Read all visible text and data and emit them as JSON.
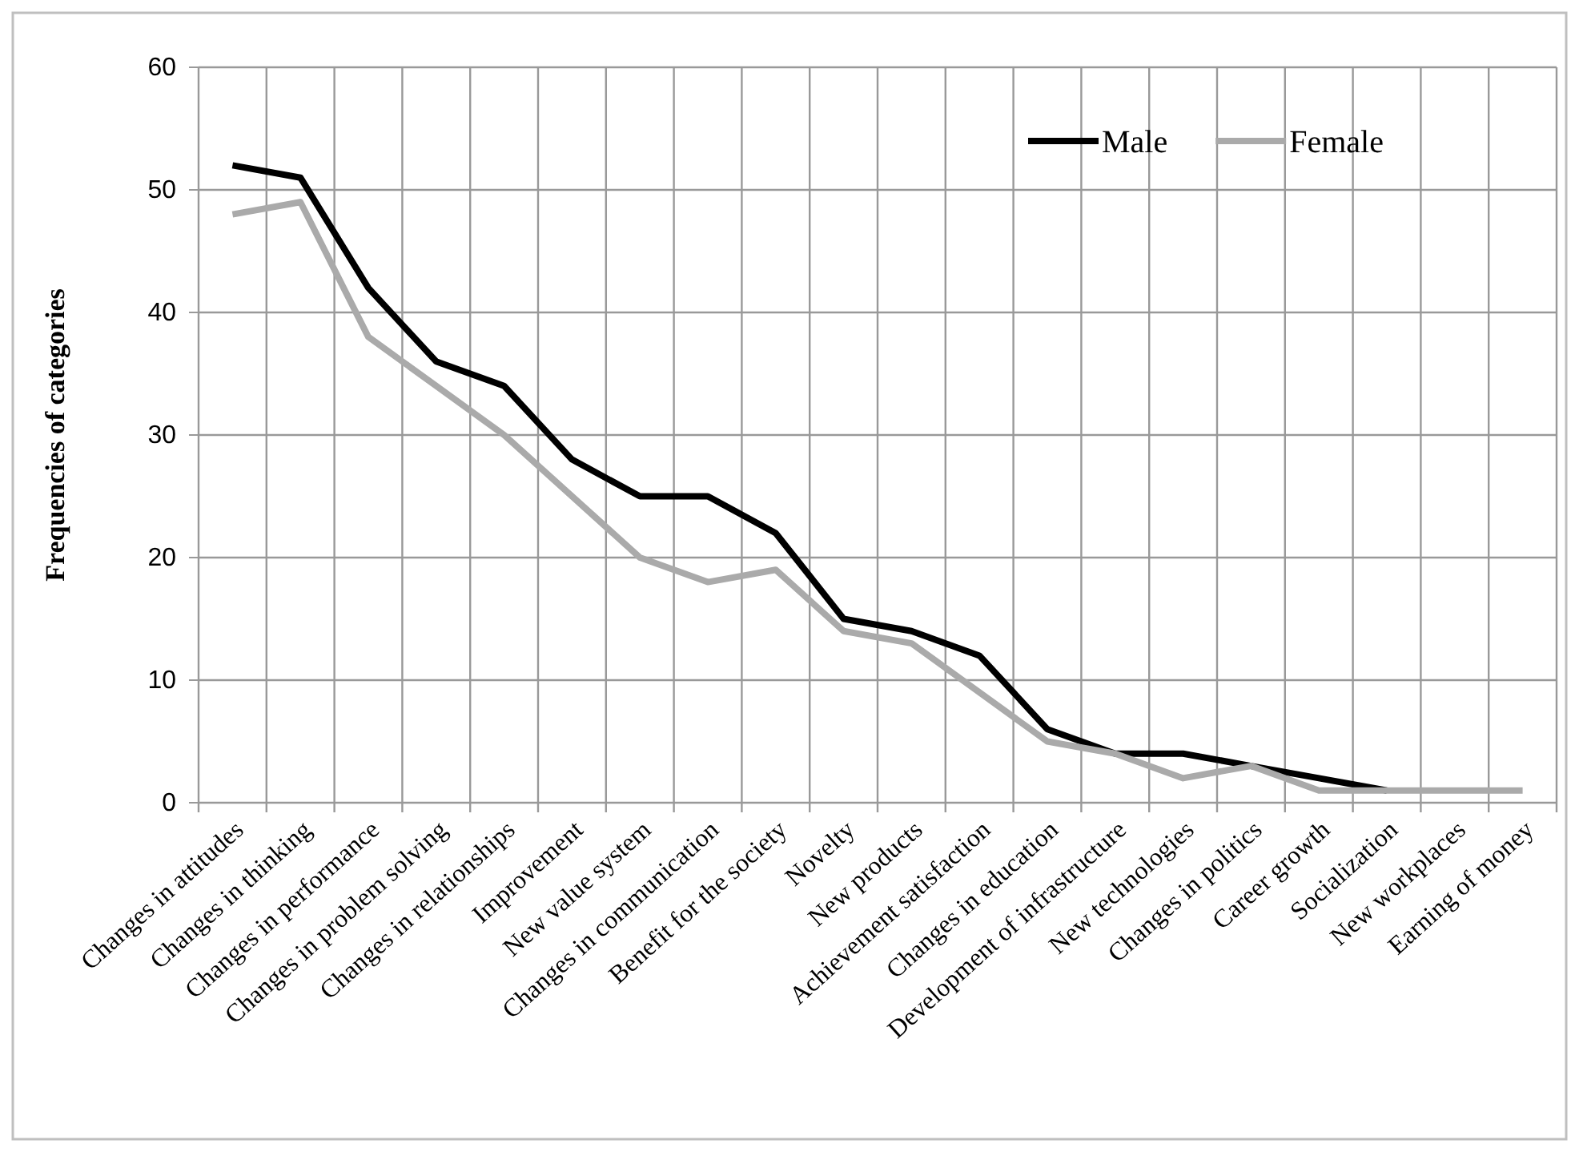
{
  "chart_data": {
    "type": "line",
    "ylabel": "Frequencies of categories",
    "categories": [
      "Changes in attitudes",
      "Changes in thinking",
      "Changes in performance",
      "Changes in problem solving",
      "Changes in relationships",
      "Improvement",
      "New value system",
      "Changes in communication",
      "Benefit for the society",
      "Novelty",
      "New products",
      "Achievement satisfaction",
      "Changes in education",
      "Development of infrastructure",
      "New technologies",
      "Changes in politics",
      "Career growth",
      "Socialization",
      "New workplaces",
      "Earning of money"
    ],
    "series": [
      {
        "name": "Male",
        "color": "#000000",
        "values": [
          52,
          51,
          42,
          36,
          34,
          28,
          25,
          25,
          22,
          15,
          14,
          12,
          6,
          4,
          4,
          3,
          2,
          1,
          null,
          null
        ]
      },
      {
        "name": "Female",
        "color": "#aaaaaa",
        "values": [
          48,
          49,
          38,
          34,
          30,
          25,
          20,
          18,
          19,
          14,
          13,
          9,
          5,
          4,
          2,
          3,
          1,
          1,
          1,
          1
        ]
      }
    ],
    "ylim": [
      0,
      60
    ],
    "yticks": [
      0,
      10,
      20,
      30,
      40,
      50,
      60
    ],
    "grid": true,
    "legend": "top right",
    "marker": "none",
    "line_style": "solid"
  }
}
